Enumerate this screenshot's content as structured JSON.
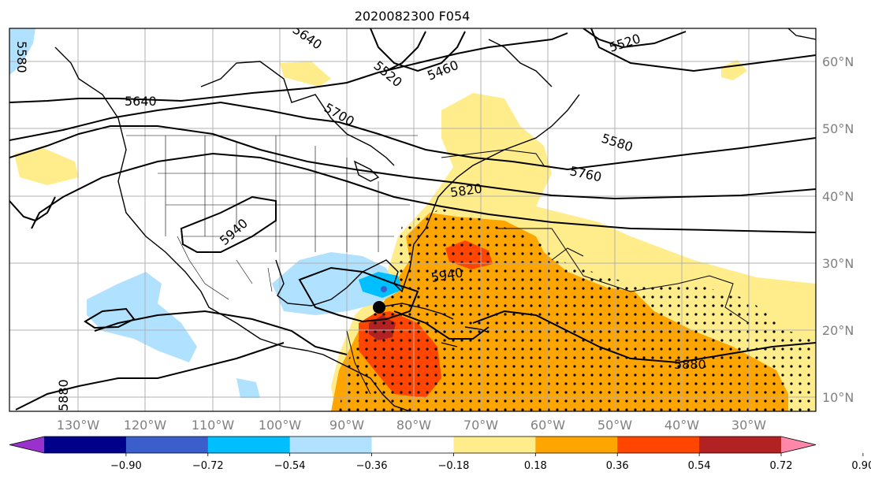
{
  "title": "2020082300 F054",
  "map": {
    "lon_labels": [
      "130°W",
      "120°W",
      "110°W",
      "100°W",
      "90°W",
      "80°W",
      "70°W",
      "60°W",
      "50°W",
      "40°W",
      "30°W"
    ],
    "lat_labels": [
      "60°N",
      "50°N",
      "40°N",
      "30°N",
      "20°N",
      "10°N"
    ],
    "contour_labels": [
      "5520",
      "5460",
      "5520",
      "5640",
      "5700",
      "5580",
      "5760",
      "5820",
      "5940",
      "5940",
      "5880",
      "5880",
      "5580",
      "5640"
    ]
  },
  "colorbar": {
    "colors": [
      "#9932cc",
      "#00008b",
      "#3a5fcd",
      "#00bfff",
      "#b0e2ff",
      "#ffffff",
      "#ffec8b",
      "#ffa500",
      "#ff4500",
      "#b22222",
      "#ff88aa"
    ],
    "tick_labels": [
      "−0.90",
      "−0.72",
      "−0.54",
      "−0.36",
      "−0.18",
      "0.18",
      "0.36",
      "0.54",
      "0.72",
      "0.90"
    ]
  }
}
